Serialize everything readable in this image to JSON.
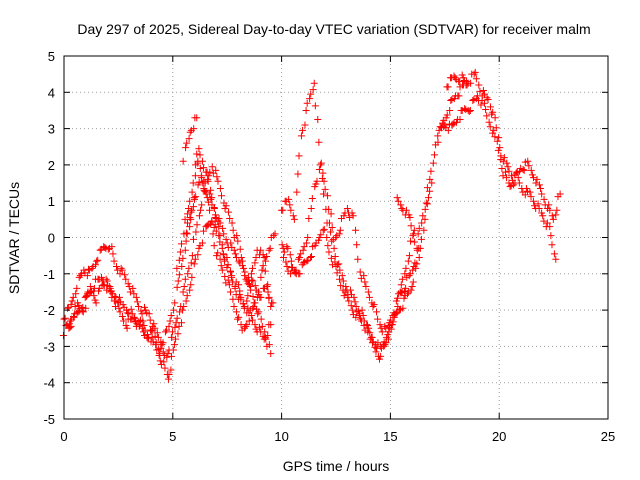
{
  "chart_data": {
    "type": "scatter",
    "marker": "plus",
    "title": "Day 297 of 2025, Sidereal Day-to-day VTEC variation (SDTVAR) for receiver malm",
    "xlabel": "GPS time / hours",
    "ylabel": "SDTVAR / TECUs",
    "xlim": [
      0,
      25
    ],
    "ylim": [
      -5,
      5
    ],
    "x_ticks": [
      0,
      5,
      10,
      15,
      20,
      25
    ],
    "y_ticks": [
      -5,
      -4,
      -3,
      -2,
      -1,
      0,
      1,
      2,
      3,
      4,
      5
    ],
    "x_tick_labels": [
      "0",
      "5",
      "10",
      "15",
      "20",
      "25"
    ],
    "y_tick_labels": [
      "-5",
      "-4",
      "-3",
      "-2",
      "-1",
      "0",
      "1",
      "2",
      "3",
      "4",
      "5"
    ],
    "grid": true,
    "colors": {
      "series": "#ff0000",
      "grid": "#a0a0a0",
      "axes": "#000000"
    },
    "series": [
      {
        "name": "SDTVAR",
        "tracks": [
          {
            "x": [
              0.0,
              0.3,
              0.6,
              0.9,
              1.2,
              1.5,
              1.8,
              2.1,
              2.4,
              2.7,
              3.0,
              3.3,
              3.6,
              3.9,
              4.2,
              4.5,
              4.8,
              5.0,
              5.3,
              5.6,
              5.9,
              6.2,
              6.5,
              6.8,
              7.1,
              7.4,
              7.7,
              8.0,
              8.3,
              8.6,
              8.9,
              9.2,
              9.5
            ],
            "y": [
              -2.6,
              -2.3,
              -1.9,
              -2.0,
              -1.4,
              -1.7,
              -1.2,
              -1.5,
              -1.6,
              -1.9,
              -2.0,
              -2.3,
              -2.4,
              -2.7,
              -3.0,
              -3.4,
              -3.9,
              -3.2,
              -2.4,
              -1.8,
              -1.0,
              -0.3,
              0.2,
              0.5,
              0.0,
              -0.5,
              -1.1,
              -1.4,
              -1.9,
              -2.2,
              -2.5,
              -2.8,
              -2.4
            ]
          },
          {
            "x": [
              0.0,
              0.3,
              0.6,
              0.9,
              1.2,
              1.5,
              1.8,
              2.1,
              2.4,
              2.7,
              3.0,
              3.3,
              3.6,
              3.9,
              4.2,
              4.5,
              4.8,
              5.1,
              5.4,
              5.7,
              6.0,
              6.3,
              6.6,
              6.9,
              7.2,
              7.5,
              7.8,
              8.1,
              8.4,
              8.7,
              9.0,
              9.3,
              9.6
            ],
            "y": [
              -2.2,
              -1.9,
              -1.3,
              -0.9,
              -1.0,
              -0.6,
              -0.3,
              -0.2,
              -0.8,
              -1.0,
              -1.3,
              -1.7,
              -2.0,
              -2.1,
              -2.6,
              -2.9,
              -2.5,
              -1.7,
              -0.8,
              0.3,
              1.1,
              1.6,
              1.2,
              0.8,
              0.3,
              -0.1,
              -0.4,
              -0.6,
              -1.2,
              -1.3,
              -1.6,
              -1.4,
              -1.8
            ]
          },
          {
            "x": [
              0.2,
              0.5,
              0.8,
              1.1,
              1.4,
              1.7,
              2.0,
              2.3,
              2.6,
              2.9,
              3.2,
              3.5,
              3.8,
              4.1,
              4.4,
              4.7,
              5.0,
              5.3,
              5.6,
              5.9,
              6.2,
              6.5,
              6.8,
              7.1,
              7.4,
              7.7,
              8.0,
              8.3,
              8.6,
              8.9,
              9.2,
              9.5
            ],
            "y": [
              -2.5,
              -2.2,
              -1.9,
              -1.6,
              -1.3,
              -1.1,
              -1.3,
              -1.7,
              -2.1,
              -2.4,
              -2.2,
              -2.5,
              -2.7,
              -2.6,
              -3.1,
              -3.3,
              -2.7,
              -2.0,
              -1.2,
              -0.4,
              0.6,
              1.4,
              2.0,
              1.5,
              0.9,
              0.4,
              -0.2,
              -0.9,
              -1.5,
              -2.0,
              -2.6,
              -3.2
            ]
          },
          {
            "x": [
              5.2,
              5.5,
              5.8,
              6.1,
              6.4,
              6.7,
              7.0,
              7.3,
              7.6,
              7.9,
              8.2,
              8.5,
              8.8,
              9.1,
              9.4,
              9.7
            ],
            "y": [
              -0.9,
              0.2,
              1.0,
              2.2,
              1.6,
              0.7,
              -0.4,
              -0.9,
              -1.4,
              -2.0,
              -2.6,
              -2.2,
              -1.8,
              -1.0,
              -0.3,
              0.1
            ]
          },
          {
            "x": [
              5.6,
              5.9,
              6.2,
              6.5,
              6.8,
              7.1,
              7.4,
              7.7,
              8.0,
              8.3,
              8.6,
              8.9,
              9.2,
              9.5
            ],
            "y": [
              -0.2,
              0.8,
              2.4,
              1.9,
              1.1,
              0.2,
              -0.6,
              -1.1,
              -1.6,
              -1.9,
              -1.1,
              -0.3,
              -0.6,
              -1.9
            ]
          },
          {
            "x": [
              5.5,
              5.8,
              6.1
            ],
            "y": [
              2.2,
              2.9,
              3.3
            ]
          },
          {
            "x": [
              10.0,
              10.3,
              10.6,
              10.9,
              11.2,
              11.5,
              11.8,
              12.1,
              12.4,
              12.7,
              13.0,
              13.3,
              13.6,
              13.9,
              14.2,
              14.5,
              14.8,
              15.1,
              15.4,
              15.7,
              16.0,
              16.3,
              16.6,
              16.9
            ],
            "y": [
              0.8,
              1.0,
              0.6,
              2.8,
              3.6,
              4.3,
              2.0,
              0.5,
              -0.3,
              -1.0,
              -1.4,
              -1.7,
              -2.0,
              -2.4,
              -3.0,
              -3.3,
              -2.8,
              -2.3,
              -2.0,
              -1.7,
              -1.3,
              -0.6,
              0.6,
              1.5
            ]
          },
          {
            "x": [
              10.0,
              10.3,
              10.6,
              10.9,
              11.2,
              11.5,
              11.8,
              12.1,
              12.4,
              12.7,
              13.0,
              13.3,
              13.6,
              13.9,
              14.2,
              14.5,
              14.8,
              15.1,
              15.4,
              15.7,
              16.0,
              16.3
            ],
            "y": [
              -0.2,
              -0.4,
              -0.9,
              -0.5,
              0.1,
              1.4,
              1.9,
              1.2,
              -0.1,
              0.3,
              0.8,
              0.5,
              -0.9,
              -1.4,
              -1.8,
              -2.4,
              -2.6,
              -2.1,
              -1.6,
              -1.3,
              -0.9,
              -0.3
            ]
          },
          {
            "x": [
              10.1,
              10.4,
              10.7,
              11.0,
              11.3,
              11.6,
              11.9,
              12.2,
              12.5,
              12.8,
              13.1,
              13.4,
              13.7,
              14.0,
              14.3,
              14.6,
              14.9,
              15.2,
              15.5,
              15.8,
              16.1
            ],
            "y": [
              -0.6,
              -0.9,
              -1.0,
              -0.8,
              -0.5,
              -0.2,
              0.3,
              -0.4,
              -0.9,
              -1.4,
              -1.8,
              -2.1,
              -2.3,
              -2.6,
              -2.9,
              -3.1,
              -2.7,
              -2.2,
              -1.4,
              -0.6,
              0.2
            ]
          },
          {
            "x": [
              15.3,
              15.6,
              15.9,
              16.2,
              16.5,
              16.8,
              17.1,
              17.4,
              17.7,
              18.0,
              18.3,
              18.6,
              18.9,
              19.2,
              19.5,
              19.8,
              20.1,
              20.4,
              20.7,
              21.0,
              21.3,
              21.6,
              21.9,
              22.2,
              22.5,
              22.8
            ],
            "y": [
              1.0,
              0.8,
              0.5,
              -0.2,
              0.6,
              1.5,
              2.6,
              3.1,
              3.6,
              3.9,
              4.1,
              4.3,
              4.5,
              4.0,
              3.8,
              3.2,
              2.3,
              1.9,
              1.6,
              1.9,
              2.0,
              1.7,
              1.3,
              0.9,
              0.5,
              1.2
            ]
          },
          {
            "x": [
              17.2,
              17.5,
              17.8,
              18.1,
              18.4,
              18.7,
              19.0,
              19.3,
              19.6,
              19.9,
              20.2,
              20.5,
              20.8,
              21.1,
              21.4,
              21.7,
              22.0,
              22.3,
              22.6
            ],
            "y": [
              2.9,
              3.1,
              3.0,
              3.3,
              3.5,
              3.6,
              3.9,
              3.6,
              3.1,
              2.6,
              1.8,
              1.4,
              1.7,
              1.3,
              1.2,
              0.9,
              0.6,
              0.2,
              -0.6
            ]
          },
          {
            "x": [
              17.6,
              17.9,
              18.2,
              18.5
            ],
            "y": [
              4.2,
              4.4,
              4.4,
              4.3
            ]
          }
        ]
      }
    ]
  }
}
